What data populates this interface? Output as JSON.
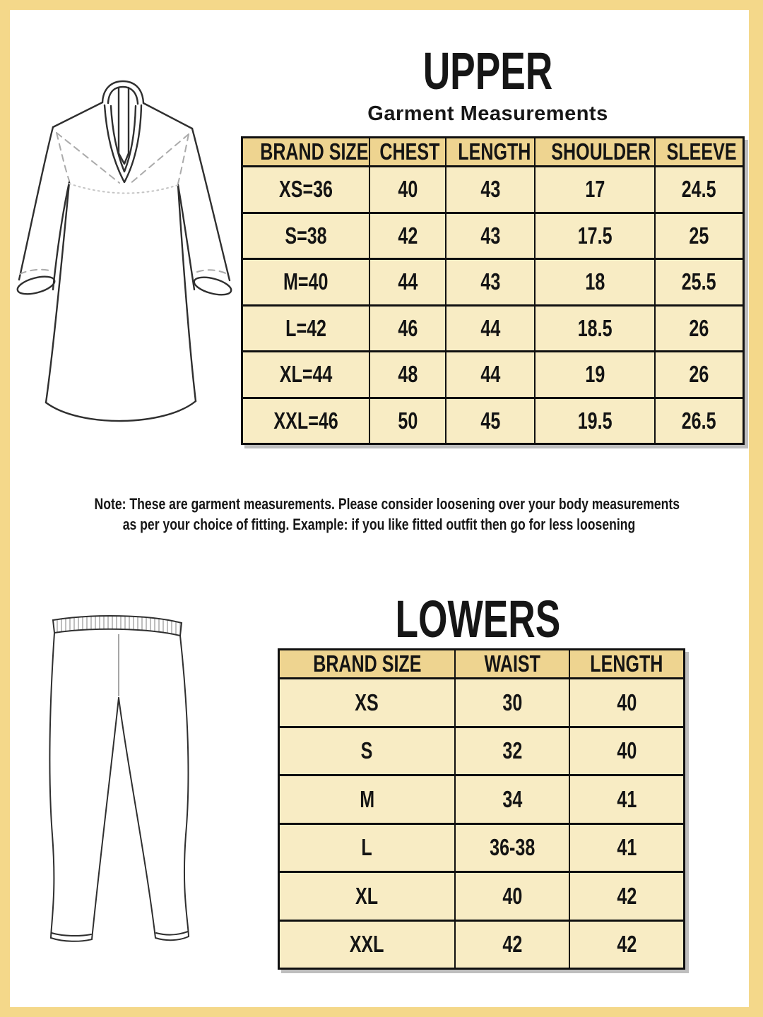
{
  "theme": {
    "frame_gold": "#F4D88A",
    "table_header_bg": "#EED490",
    "table_row_bg": "#F8ECC4",
    "line_black": "#101010"
  },
  "upper": {
    "title": "UPPER",
    "subtitle": "Garment Measurements",
    "illustration": "kurta-line-drawing",
    "table": {
      "headers": [
        "BRAND SIZE",
        "CHEST",
        "LENGTH",
        "SHOULDER",
        "SLEEVE"
      ],
      "rows": [
        [
          "XS=36",
          "40",
          "43",
          "17",
          "24.5"
        ],
        [
          "S=38",
          "42",
          "43",
          "17.5",
          "25"
        ],
        [
          "M=40",
          "44",
          "43",
          "18",
          "25.5"
        ],
        [
          "L=42",
          "46",
          "44",
          "18.5",
          "26"
        ],
        [
          "XL=44",
          "48",
          "44",
          "19",
          "26"
        ],
        [
          "XXL=46",
          "50",
          "45",
          "19.5",
          "26.5"
        ]
      ]
    }
  },
  "note": {
    "line1": "Note: These are garment measurements. Please consider loosening over your body measurements",
    "line2": "as per your choice of fitting. Example: if you like fitted outfit then go for less loosening"
  },
  "lowers": {
    "title": "LOWERS",
    "illustration": "pants-line-drawing",
    "table": {
      "headers": [
        "BRAND SIZE",
        "WAIST",
        "LENGTH"
      ],
      "rows": [
        [
          "XS",
          "30",
          "40"
        ],
        [
          "S",
          "32",
          "40"
        ],
        [
          "M",
          "34",
          "41"
        ],
        [
          "L",
          "36-38",
          "41"
        ],
        [
          "XL",
          "40",
          "42"
        ],
        [
          "XXL",
          "42",
          "42"
        ]
      ]
    }
  }
}
